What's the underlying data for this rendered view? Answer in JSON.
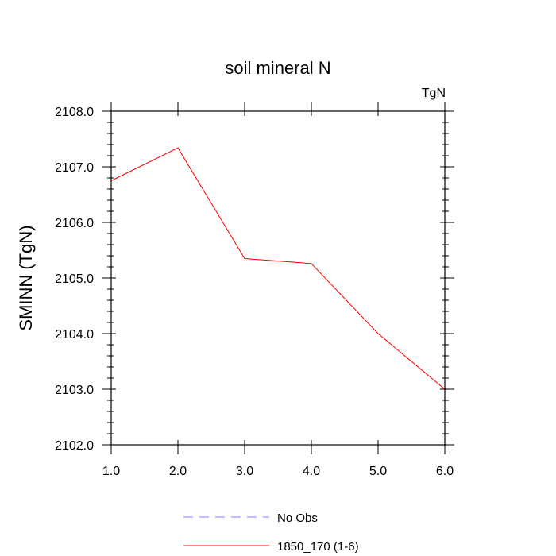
{
  "chart_data": {
    "type": "line",
    "title": "soil mineral N",
    "units_label": "TgN",
    "ylabel": "SMINN  (TgN)",
    "xlabel": "",
    "xlim": [
      1.0,
      6.0
    ],
    "ylim": [
      2102.0,
      2108.0
    ],
    "x_ticks": [
      "1.0",
      "2.0",
      "3.0",
      "4.0",
      "5.0",
      "6.0"
    ],
    "y_ticks": [
      "2102.0",
      "2103.0",
      "2104.0",
      "2105.0",
      "2106.0",
      "2107.0",
      "2108.0"
    ],
    "x": [
      1,
      2,
      3,
      4,
      5,
      6
    ],
    "series": [
      {
        "name": "1850_170 (1-6)",
        "color": "#ff0000",
        "style": "solid",
        "values": [
          2106.75,
          2107.34,
          2105.35,
          2105.26,
          2104.0,
          2103.0
        ]
      }
    ],
    "legend": {
      "placement": "bottom-center",
      "entries": [
        {
          "label": "No Obs",
          "color": "#8080ff",
          "style": "dashed"
        },
        {
          "label": "1850_170 (1-6)",
          "color": "#ff0000",
          "style": "solid"
        }
      ]
    },
    "grid": false
  }
}
